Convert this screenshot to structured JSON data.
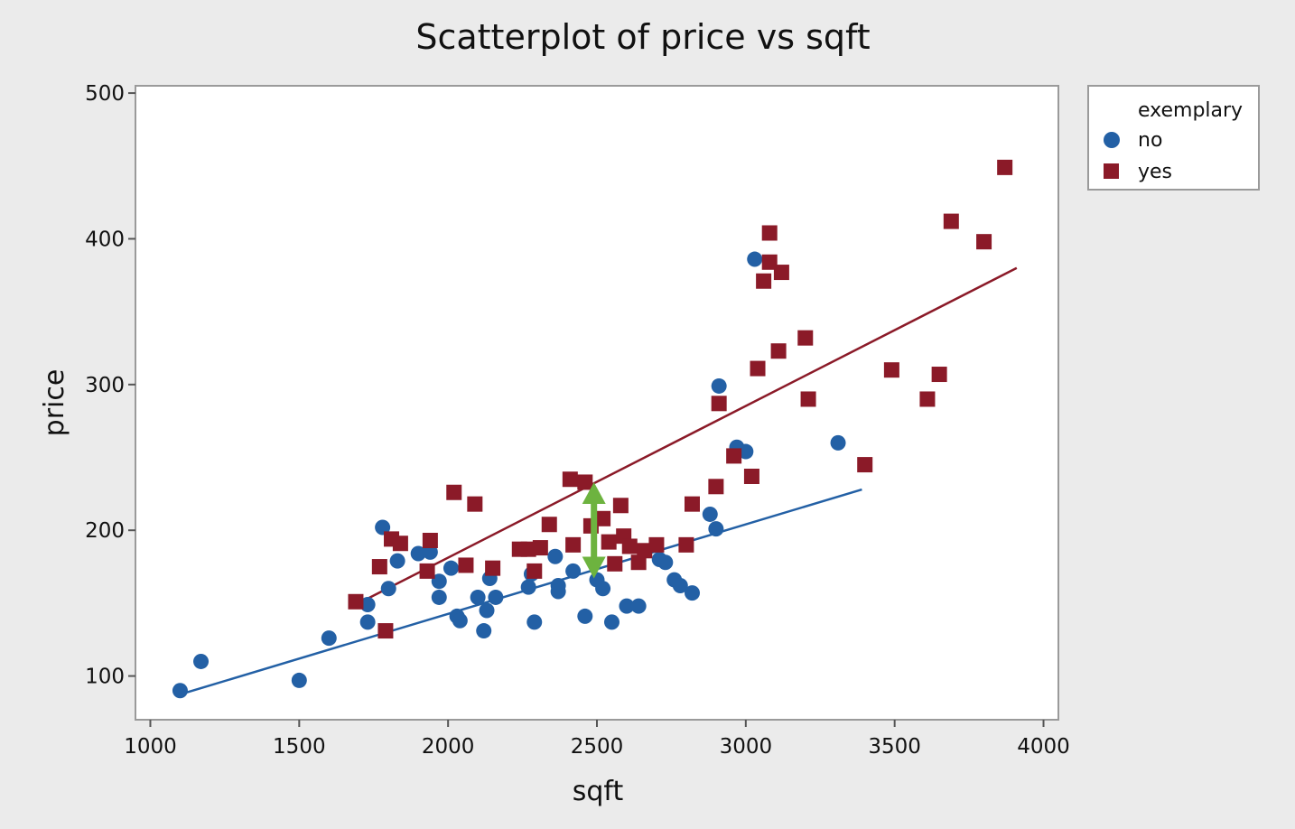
{
  "chart_data": {
    "type": "scatter",
    "title": "Scatterplot of price vs sqft",
    "xlabel": "sqft",
    "ylabel": "price",
    "xlim": [
      950,
      4050
    ],
    "ylim": [
      70,
      505
    ],
    "xticks": [
      1000,
      1500,
      2000,
      2500,
      3000,
      3500,
      4000
    ],
    "yticks": [
      100,
      200,
      300,
      400,
      500
    ],
    "grid": false,
    "legend": {
      "title": "exemplary",
      "position": "right-top"
    },
    "series": [
      {
        "name": "no",
        "marker": "circle",
        "color": "#2360a5",
        "points": [
          [
            1100,
            90
          ],
          [
            1170,
            110
          ],
          [
            1500,
            97
          ],
          [
            1600,
            126
          ],
          [
            1730,
            137
          ],
          [
            1730,
            149
          ],
          [
            1780,
            202
          ],
          [
            1800,
            160
          ],
          [
            1830,
            179
          ],
          [
            1900,
            184
          ],
          [
            1940,
            185
          ],
          [
            1970,
            165
          ],
          [
            1970,
            154
          ],
          [
            2010,
            174
          ],
          [
            2030,
            141
          ],
          [
            2040,
            138
          ],
          [
            2100,
            154
          ],
          [
            2120,
            131
          ],
          [
            2130,
            145
          ],
          [
            2140,
            167
          ],
          [
            2160,
            154
          ],
          [
            2270,
            161
          ],
          [
            2280,
            170
          ],
          [
            2290,
            137
          ],
          [
            2360,
            182
          ],
          [
            2370,
            162
          ],
          [
            2370,
            158
          ],
          [
            2420,
            172
          ],
          [
            2460,
            141
          ],
          [
            2500,
            166
          ],
          [
            2520,
            160
          ],
          [
            2550,
            137
          ],
          [
            2600,
            148
          ],
          [
            2640,
            148
          ],
          [
            2710,
            180
          ],
          [
            2730,
            178
          ],
          [
            2760,
            166
          ],
          [
            2780,
            162
          ],
          [
            2820,
            157
          ],
          [
            2880,
            211
          ],
          [
            2900,
            201
          ],
          [
            2910,
            299
          ],
          [
            2970,
            257
          ],
          [
            3000,
            254
          ],
          [
            3030,
            386
          ],
          [
            3310,
            260
          ]
        ]
      },
      {
        "name": "yes",
        "marker": "square",
        "color": "#8b1a28",
        "points": [
          [
            1690,
            151
          ],
          [
            1770,
            175
          ],
          [
            1790,
            131
          ],
          [
            1810,
            194
          ],
          [
            1840,
            191
          ],
          [
            1930,
            172
          ],
          [
            1940,
            193
          ],
          [
            2020,
            226
          ],
          [
            2060,
            176
          ],
          [
            2090,
            218
          ],
          [
            2150,
            174
          ],
          [
            2240,
            187
          ],
          [
            2270,
            187
          ],
          [
            2290,
            172
          ],
          [
            2310,
            188
          ],
          [
            2340,
            204
          ],
          [
            2410,
            235
          ],
          [
            2420,
            190
          ],
          [
            2460,
            233
          ],
          [
            2480,
            203
          ],
          [
            2520,
            208
          ],
          [
            2540,
            192
          ],
          [
            2560,
            177
          ],
          [
            2580,
            217
          ],
          [
            2590,
            196
          ],
          [
            2610,
            189
          ],
          [
            2640,
            178
          ],
          [
            2660,
            186
          ],
          [
            2700,
            190
          ],
          [
            2800,
            190
          ],
          [
            2820,
            218
          ],
          [
            2900,
            230
          ],
          [
            2910,
            287
          ],
          [
            2960,
            251
          ],
          [
            3020,
            237
          ],
          [
            3040,
            311
          ],
          [
            3060,
            371
          ],
          [
            3080,
            384
          ],
          [
            3080,
            404
          ],
          [
            3110,
            323
          ],
          [
            3120,
            377
          ],
          [
            3200,
            332
          ],
          [
            3210,
            290
          ],
          [
            3400,
            245
          ],
          [
            3490,
            310
          ],
          [
            3610,
            290
          ],
          [
            3650,
            307
          ],
          [
            3690,
            412
          ],
          [
            3800,
            398
          ],
          [
            3870,
            449
          ]
        ]
      }
    ],
    "fit_lines": [
      {
        "series": "no",
        "x": [
          1110,
          3390
        ],
        "y": [
          88,
          228
        ],
        "color": "#2360a5"
      },
      {
        "series": "yes",
        "x": [
          1700,
          3910
        ],
        "y": [
          150,
          380
        ],
        "color": "#8b1a28"
      }
    ],
    "annotations": [
      {
        "type": "double-arrow",
        "color": "#6db33f",
        "x": 2490,
        "y_from": 167,
        "y_to": 233
      }
    ]
  }
}
